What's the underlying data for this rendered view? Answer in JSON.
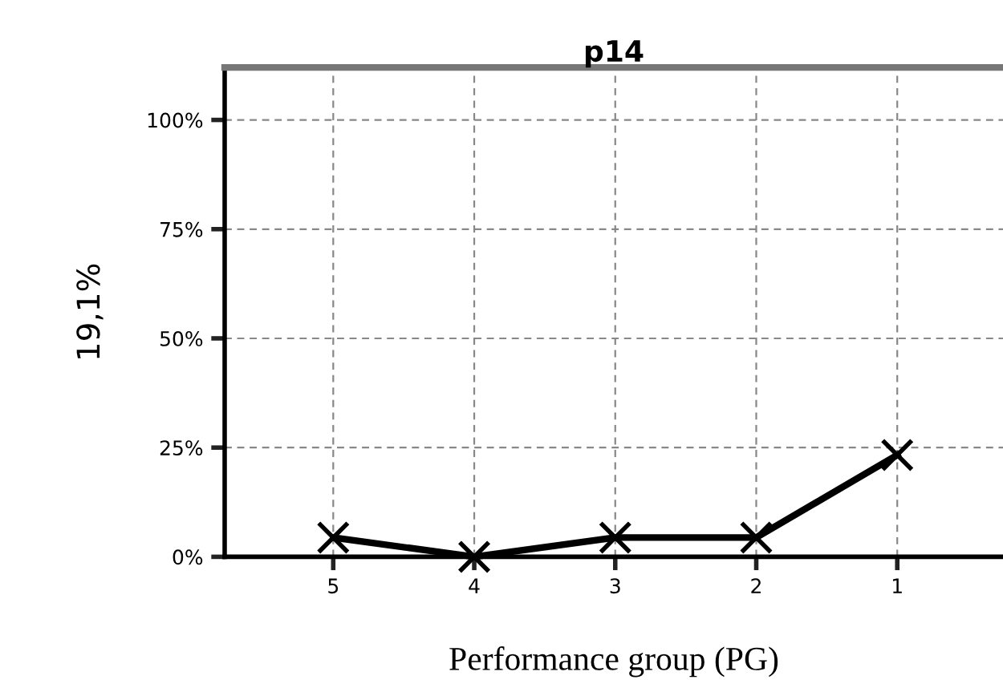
{
  "chart_data": {
    "type": "line",
    "title": "p14",
    "xlabel": "Performance group (PG)",
    "ylabel": "19,1%",
    "categories": [
      "5",
      "4",
      "3",
      "2",
      "1"
    ],
    "series": [
      {
        "color": "#000000",
        "values": [
          4.4,
          0,
          4.4,
          4.4,
          23.3
        ]
      }
    ],
    "ylim": [
      0,
      112
    ],
    "yticks": [
      {
        "value": 0,
        "label": "0%"
      },
      {
        "value": 25,
        "label": "25%"
      },
      {
        "value": 50,
        "label": "50%"
      },
      {
        "value": 75,
        "label": "75%"
      },
      {
        "value": 100,
        "label": "100%"
      }
    ],
    "grid": true,
    "marker": "cross",
    "line_style": "solid"
  }
}
